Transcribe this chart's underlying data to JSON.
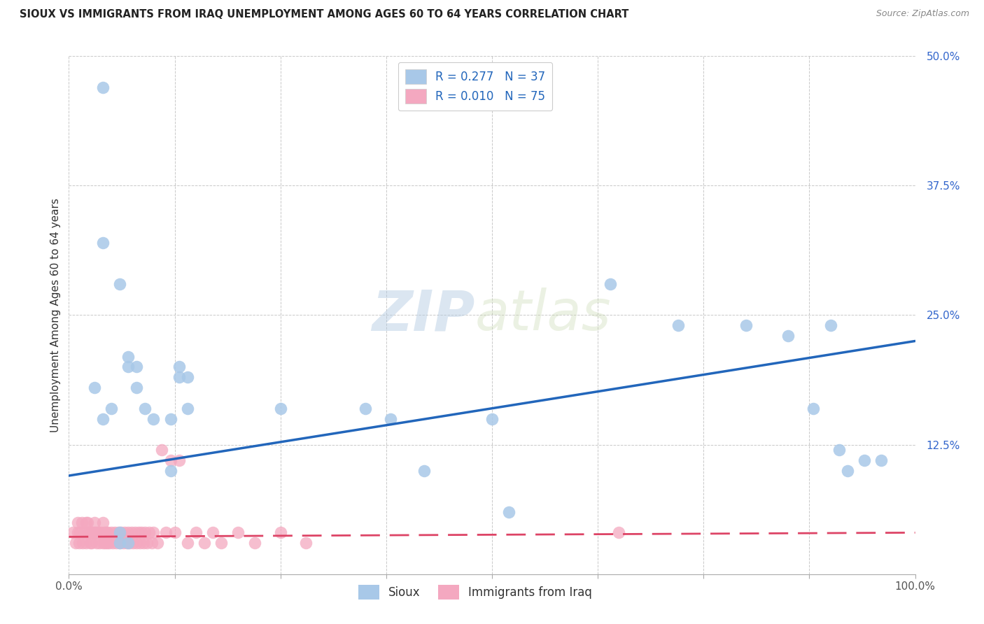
{
  "title": "SIOUX VS IMMIGRANTS FROM IRAQ UNEMPLOYMENT AMONG AGES 60 TO 64 YEARS CORRELATION CHART",
  "source": "Source: ZipAtlas.com",
  "ylabel": "Unemployment Among Ages 60 to 64 years",
  "xlim": [
    0.0,
    1.0
  ],
  "ylim": [
    0.0,
    0.5
  ],
  "xticks": [
    0.0,
    0.125,
    0.25,
    0.375,
    0.5,
    0.625,
    0.75,
    0.875,
    1.0
  ],
  "xticklabels": [
    "0.0%",
    "",
    "",
    "",
    "",
    "",
    "",
    "",
    "100.0%"
  ],
  "yticks": [
    0.0,
    0.125,
    0.25,
    0.375,
    0.5
  ],
  "yticklabels": [
    "",
    "12.5%",
    "25.0%",
    "37.5%",
    "50.0%"
  ],
  "watermark_zip": "ZIP",
  "watermark_atlas": "atlas",
  "legend_r1": "R = 0.277",
  "legend_n1": "N = 37",
  "legend_r2": "R = 0.010",
  "legend_n2": "N = 75",
  "sioux_color": "#a8c8e8",
  "iraq_color": "#f4a8c0",
  "sioux_line_color": "#2266bb",
  "iraq_line_color": "#dd4466",
  "sioux_x": [
    0.04,
    0.04,
    0.06,
    0.07,
    0.07,
    0.08,
    0.08,
    0.09,
    0.1,
    0.12,
    0.12,
    0.13,
    0.13,
    0.14,
    0.14,
    0.03,
    0.04,
    0.05,
    0.06,
    0.06,
    0.07,
    0.25,
    0.35,
    0.38,
    0.42,
    0.5,
    0.52,
    0.64,
    0.72,
    0.8,
    0.85,
    0.88,
    0.9,
    0.91,
    0.92,
    0.94,
    0.96
  ],
  "sioux_y": [
    0.47,
    0.32,
    0.28,
    0.21,
    0.2,
    0.2,
    0.18,
    0.16,
    0.15,
    0.15,
    0.1,
    0.2,
    0.19,
    0.19,
    0.16,
    0.18,
    0.15,
    0.16,
    0.04,
    0.03,
    0.03,
    0.16,
    0.16,
    0.15,
    0.1,
    0.15,
    0.06,
    0.28,
    0.24,
    0.24,
    0.23,
    0.16,
    0.24,
    0.12,
    0.1,
    0.11,
    0.11
  ],
  "iraq_x": [
    0.005,
    0.008,
    0.01,
    0.01,
    0.012,
    0.013,
    0.015,
    0.016,
    0.018,
    0.02,
    0.02,
    0.022,
    0.023,
    0.025,
    0.025,
    0.026,
    0.027,
    0.028,
    0.03,
    0.03,
    0.032,
    0.033,
    0.034,
    0.035,
    0.036,
    0.038,
    0.04,
    0.04,
    0.042,
    0.043,
    0.044,
    0.045,
    0.046,
    0.048,
    0.05,
    0.052,
    0.054,
    0.056,
    0.058,
    0.06,
    0.062,
    0.064,
    0.066,
    0.068,
    0.07,
    0.072,
    0.074,
    0.076,
    0.078,
    0.08,
    0.082,
    0.084,
    0.086,
    0.088,
    0.09,
    0.092,
    0.095,
    0.098,
    0.1,
    0.105,
    0.11,
    0.115,
    0.12,
    0.125,
    0.13,
    0.14,
    0.15,
    0.16,
    0.17,
    0.18,
    0.2,
    0.22,
    0.25,
    0.28,
    0.65
  ],
  "iraq_y": [
    0.04,
    0.03,
    0.05,
    0.04,
    0.03,
    0.04,
    0.05,
    0.03,
    0.04,
    0.05,
    0.03,
    0.05,
    0.04,
    0.04,
    0.03,
    0.04,
    0.03,
    0.04,
    0.05,
    0.04,
    0.04,
    0.03,
    0.04,
    0.04,
    0.03,
    0.04,
    0.05,
    0.03,
    0.04,
    0.03,
    0.04,
    0.03,
    0.04,
    0.03,
    0.04,
    0.03,
    0.04,
    0.03,
    0.04,
    0.03,
    0.04,
    0.03,
    0.04,
    0.03,
    0.04,
    0.03,
    0.04,
    0.03,
    0.04,
    0.03,
    0.04,
    0.03,
    0.04,
    0.03,
    0.04,
    0.03,
    0.04,
    0.03,
    0.04,
    0.03,
    0.12,
    0.04,
    0.11,
    0.04,
    0.11,
    0.03,
    0.04,
    0.03,
    0.04,
    0.03,
    0.04,
    0.03,
    0.04,
    0.03,
    0.04
  ],
  "sioux_line_x": [
    0.0,
    1.0
  ],
  "sioux_line_y": [
    0.095,
    0.225
  ],
  "iraq_line_x": [
    0.0,
    1.0
  ],
  "iraq_line_y": [
    0.036,
    0.04
  ]
}
